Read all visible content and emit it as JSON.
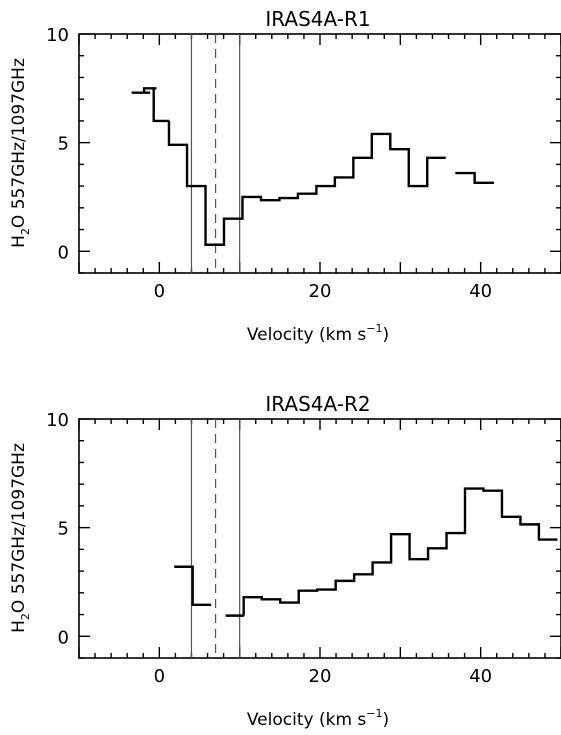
{
  "chart_data": [
    {
      "type": "step",
      "title": "IRAS4A-R1",
      "xlabel": "Velocity (km s",
      "xlabel_sup": "−1",
      "xlabel_close": ")",
      "ylabel_pre": "H",
      "ylabel_sub": "2",
      "ylabel_post": "O 557GHz/1097GHz",
      "xlim": [
        -10,
        50
      ],
      "ylim": [
        -1,
        10
      ],
      "xticks": [
        0,
        20,
        40
      ],
      "yticks": [
        0,
        5,
        10
      ],
      "vlines_solid": [
        4,
        10
      ],
      "vlines_dashed": [
        7
      ],
      "bin_width": 2.3,
      "segments": [
        [
          [
            -2.3,
            7.3
          ],
          [
            -1.5,
            7.5
          ],
          [
            0.1,
            6.0
          ],
          [
            2.3,
            4.9
          ],
          [
            4.6,
            3.0
          ],
          [
            6.9,
            0.3
          ],
          [
            9.2,
            1.5
          ],
          [
            11.5,
            2.5
          ],
          [
            13.8,
            2.35
          ],
          [
            16.1,
            2.45
          ],
          [
            18.4,
            2.65
          ],
          [
            20.7,
            3.0
          ],
          [
            23.0,
            3.4
          ],
          [
            25.3,
            4.3
          ],
          [
            27.6,
            5.4
          ],
          [
            29.9,
            4.7
          ],
          [
            32.2,
            3.0
          ],
          [
            34.5,
            4.3
          ]
        ],
        [
          [
            38.0,
            3.6
          ],
          [
            40.5,
            3.15
          ]
        ]
      ]
    },
    {
      "type": "step",
      "title": "IRAS4A-R2",
      "xlabel": "Velocity (km s",
      "xlabel_sup": "−1",
      "xlabel_close": ")",
      "ylabel_pre": "H",
      "ylabel_sub": "2",
      "ylabel_post": "O 557GHz/1097GHz",
      "xlim": [
        -10,
        50
      ],
      "ylim": [
        -1,
        10
      ],
      "xticks": [
        0,
        20,
        40
      ],
      "yticks": [
        0,
        5,
        10
      ],
      "vlines_solid": [
        4,
        10
      ],
      "vlines_dashed": [
        7
      ],
      "bin_width": 2.3,
      "segments": [
        [
          [
            3.0,
            3.2
          ],
          [
            5.3,
            1.45
          ]
        ],
        [
          [
            9.4,
            0.95
          ],
          [
            11.6,
            1.8
          ],
          [
            13.9,
            1.7
          ],
          [
            16.2,
            1.55
          ],
          [
            18.5,
            2.1
          ],
          [
            20.8,
            2.15
          ],
          [
            23.1,
            2.55
          ],
          [
            25.4,
            2.85
          ],
          [
            27.7,
            3.4
          ],
          [
            30.0,
            4.7
          ],
          [
            32.3,
            3.55
          ],
          [
            34.6,
            4.05
          ],
          [
            36.9,
            4.75
          ],
          [
            39.2,
            6.8
          ],
          [
            41.5,
            6.7
          ],
          [
            43.8,
            5.5
          ],
          [
            46.1,
            5.15
          ],
          [
            48.4,
            4.45
          ]
        ]
      ]
    }
  ]
}
